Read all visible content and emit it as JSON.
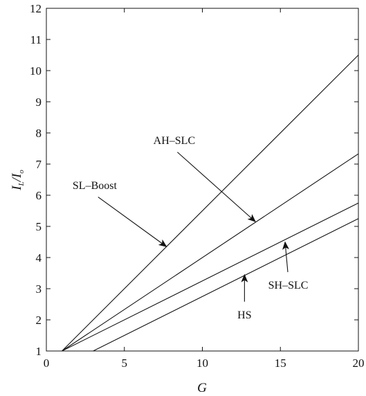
{
  "chart_data": {
    "type": "line",
    "title": "",
    "xlabel": "G",
    "ylabel": {
      "main": "I",
      "sub1": "L",
      "sep": "/",
      "main2": "I",
      "sub2": "o"
    },
    "xlim": [
      0,
      20
    ],
    "ylim": [
      1,
      12
    ],
    "xticks": [
      0,
      5,
      10,
      15,
      20
    ],
    "yticks": [
      1,
      2,
      3,
      4,
      5,
      6,
      7,
      8,
      9,
      10,
      11,
      12
    ],
    "grid": false,
    "series": [
      {
        "name": "SL–Boost",
        "x": [
          1,
          20
        ],
        "y": [
          1,
          10.5
        ]
      },
      {
        "name": "AH–SLC",
        "x": [
          1,
          20
        ],
        "y": [
          1,
          7.33
        ]
      },
      {
        "name": "SH–SLC",
        "x": [
          1,
          20
        ],
        "y": [
          1,
          5.75
        ]
      },
      {
        "name": "HS",
        "x": [
          3,
          20
        ],
        "y": [
          1,
          5.25
        ]
      }
    ],
    "annotations": [
      {
        "text": "SL–Boost",
        "tx": 3.1,
        "ty": 6.2,
        "ax": 7.7,
        "ay": 4.35
      },
      {
        "text": "AH–SLC",
        "tx": 8.2,
        "ty": 7.65,
        "ax": 13.4,
        "ay": 5.15
      },
      {
        "text": "SH–SLC",
        "tx": 15.5,
        "ty": 3.0,
        "ax": 15.3,
        "ay": 4.5
      },
      {
        "text": "HS",
        "tx": 12.7,
        "ty": 2.05,
        "ax": 12.7,
        "ay": 3.45
      }
    ]
  }
}
